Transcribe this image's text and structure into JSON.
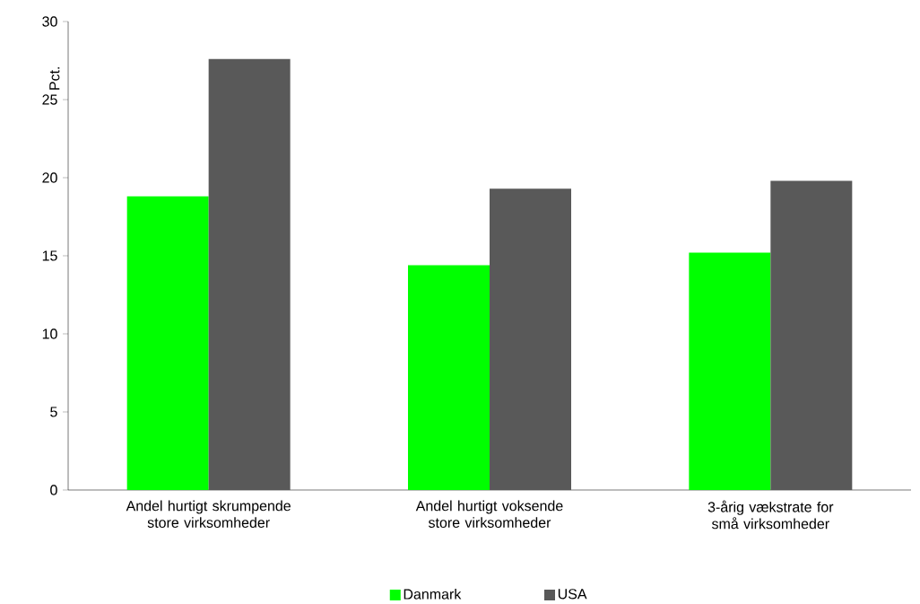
{
  "chart_data": {
    "type": "bar",
    "ylabel": "Pct.",
    "categories": [
      "Andel hurtigt skrumpende store virksomheder",
      "Andel hurtigt voksende store virksomheder",
      "3-årig vækstrate for små virksomheder"
    ],
    "series": [
      {
        "name": "Danmark",
        "color": "#00ff00",
        "values": [
          18.8,
          14.4,
          15.2
        ]
      },
      {
        "name": "USA",
        "color": "#595959",
        "values": [
          27.6,
          19.3,
          19.8
        ]
      }
    ],
    "ylim": [
      0,
      30
    ],
    "yticks": [
      0,
      5,
      10,
      15,
      20,
      25,
      30
    ],
    "grid": false,
    "legend": "bottom"
  }
}
